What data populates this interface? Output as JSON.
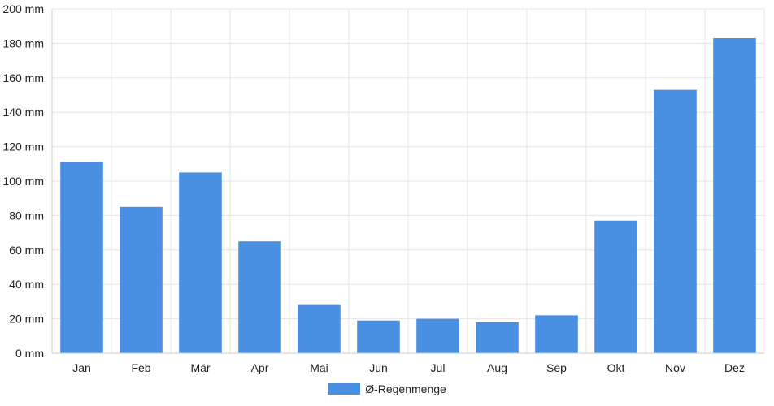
{
  "chart_data": {
    "type": "bar",
    "categories": [
      "Jan",
      "Feb",
      "Mär",
      "Apr",
      "Mai",
      "Jun",
      "Jul",
      "Aug",
      "Sep",
      "Okt",
      "Nov",
      "Dez"
    ],
    "series": [
      {
        "name": "Ø-Regenmenge",
        "values": [
          111,
          85,
          105,
          65,
          28,
          19,
          20,
          18,
          22,
          77,
          153,
          183
        ],
        "color": "#4a90e2"
      }
    ],
    "ylim": [
      0,
      200
    ],
    "yticks": [
      0,
      20,
      40,
      60,
      80,
      100,
      120,
      140,
      160,
      180,
      200
    ],
    "yunit": "mm",
    "ytick_labels": [
      "0 mm",
      "20 mm",
      "40 mm",
      "60 mm",
      "80 mm",
      "100 mm",
      "120 mm",
      "140 mm",
      "160 mm",
      "180 mm",
      "200 mm"
    ],
    "grid": true,
    "legend_position": "bottom"
  }
}
